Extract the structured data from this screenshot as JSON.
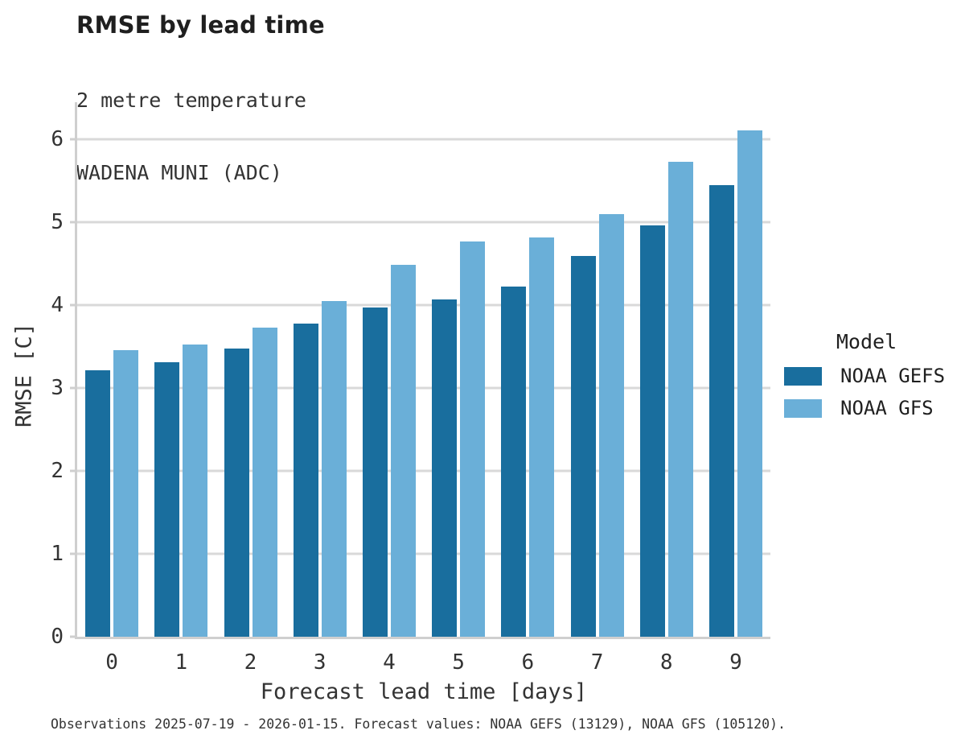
{
  "chart_data": {
    "type": "bar",
    "title": "RMSE by lead time",
    "subtitle": [
      "2 metre temperature",
      "WADENA MUNI (ADC)"
    ],
    "xlabel": "Forecast lead time [days]",
    "ylabel": "RMSE [C]",
    "categories": [
      "0",
      "1",
      "2",
      "3",
      "4",
      "5",
      "6",
      "7",
      "8",
      "9"
    ],
    "series": [
      {
        "name": "NOAA GEFS",
        "color": "#196e9e",
        "values": [
          3.22,
          3.31,
          3.48,
          3.78,
          3.97,
          4.07,
          4.23,
          4.59,
          4.96,
          5.45
        ]
      },
      {
        "name": "NOAA GFS",
        "color": "#6aafd8",
        "values": [
          3.46,
          3.53,
          3.73,
          4.05,
          4.49,
          4.77,
          4.82,
          5.1,
          5.73,
          6.11
        ]
      }
    ],
    "yticks": [
      0,
      1,
      2,
      3,
      4,
      5,
      6
    ],
    "ylim": [
      0,
      6.44
    ],
    "grid": "horizontal",
    "legend_title": "Model",
    "legend_position": "right",
    "footnote": "Observations 2025-07-19 - 2026-01-15. Forecast values: NOAA GEFS (13129), NOAA GFS (105120)."
  },
  "colors": {
    "background": "#ffffff",
    "grid": "#d9d9d9",
    "spine": "#cfcfcf",
    "title_text": "#1f1f1f",
    "text": "#333333"
  }
}
